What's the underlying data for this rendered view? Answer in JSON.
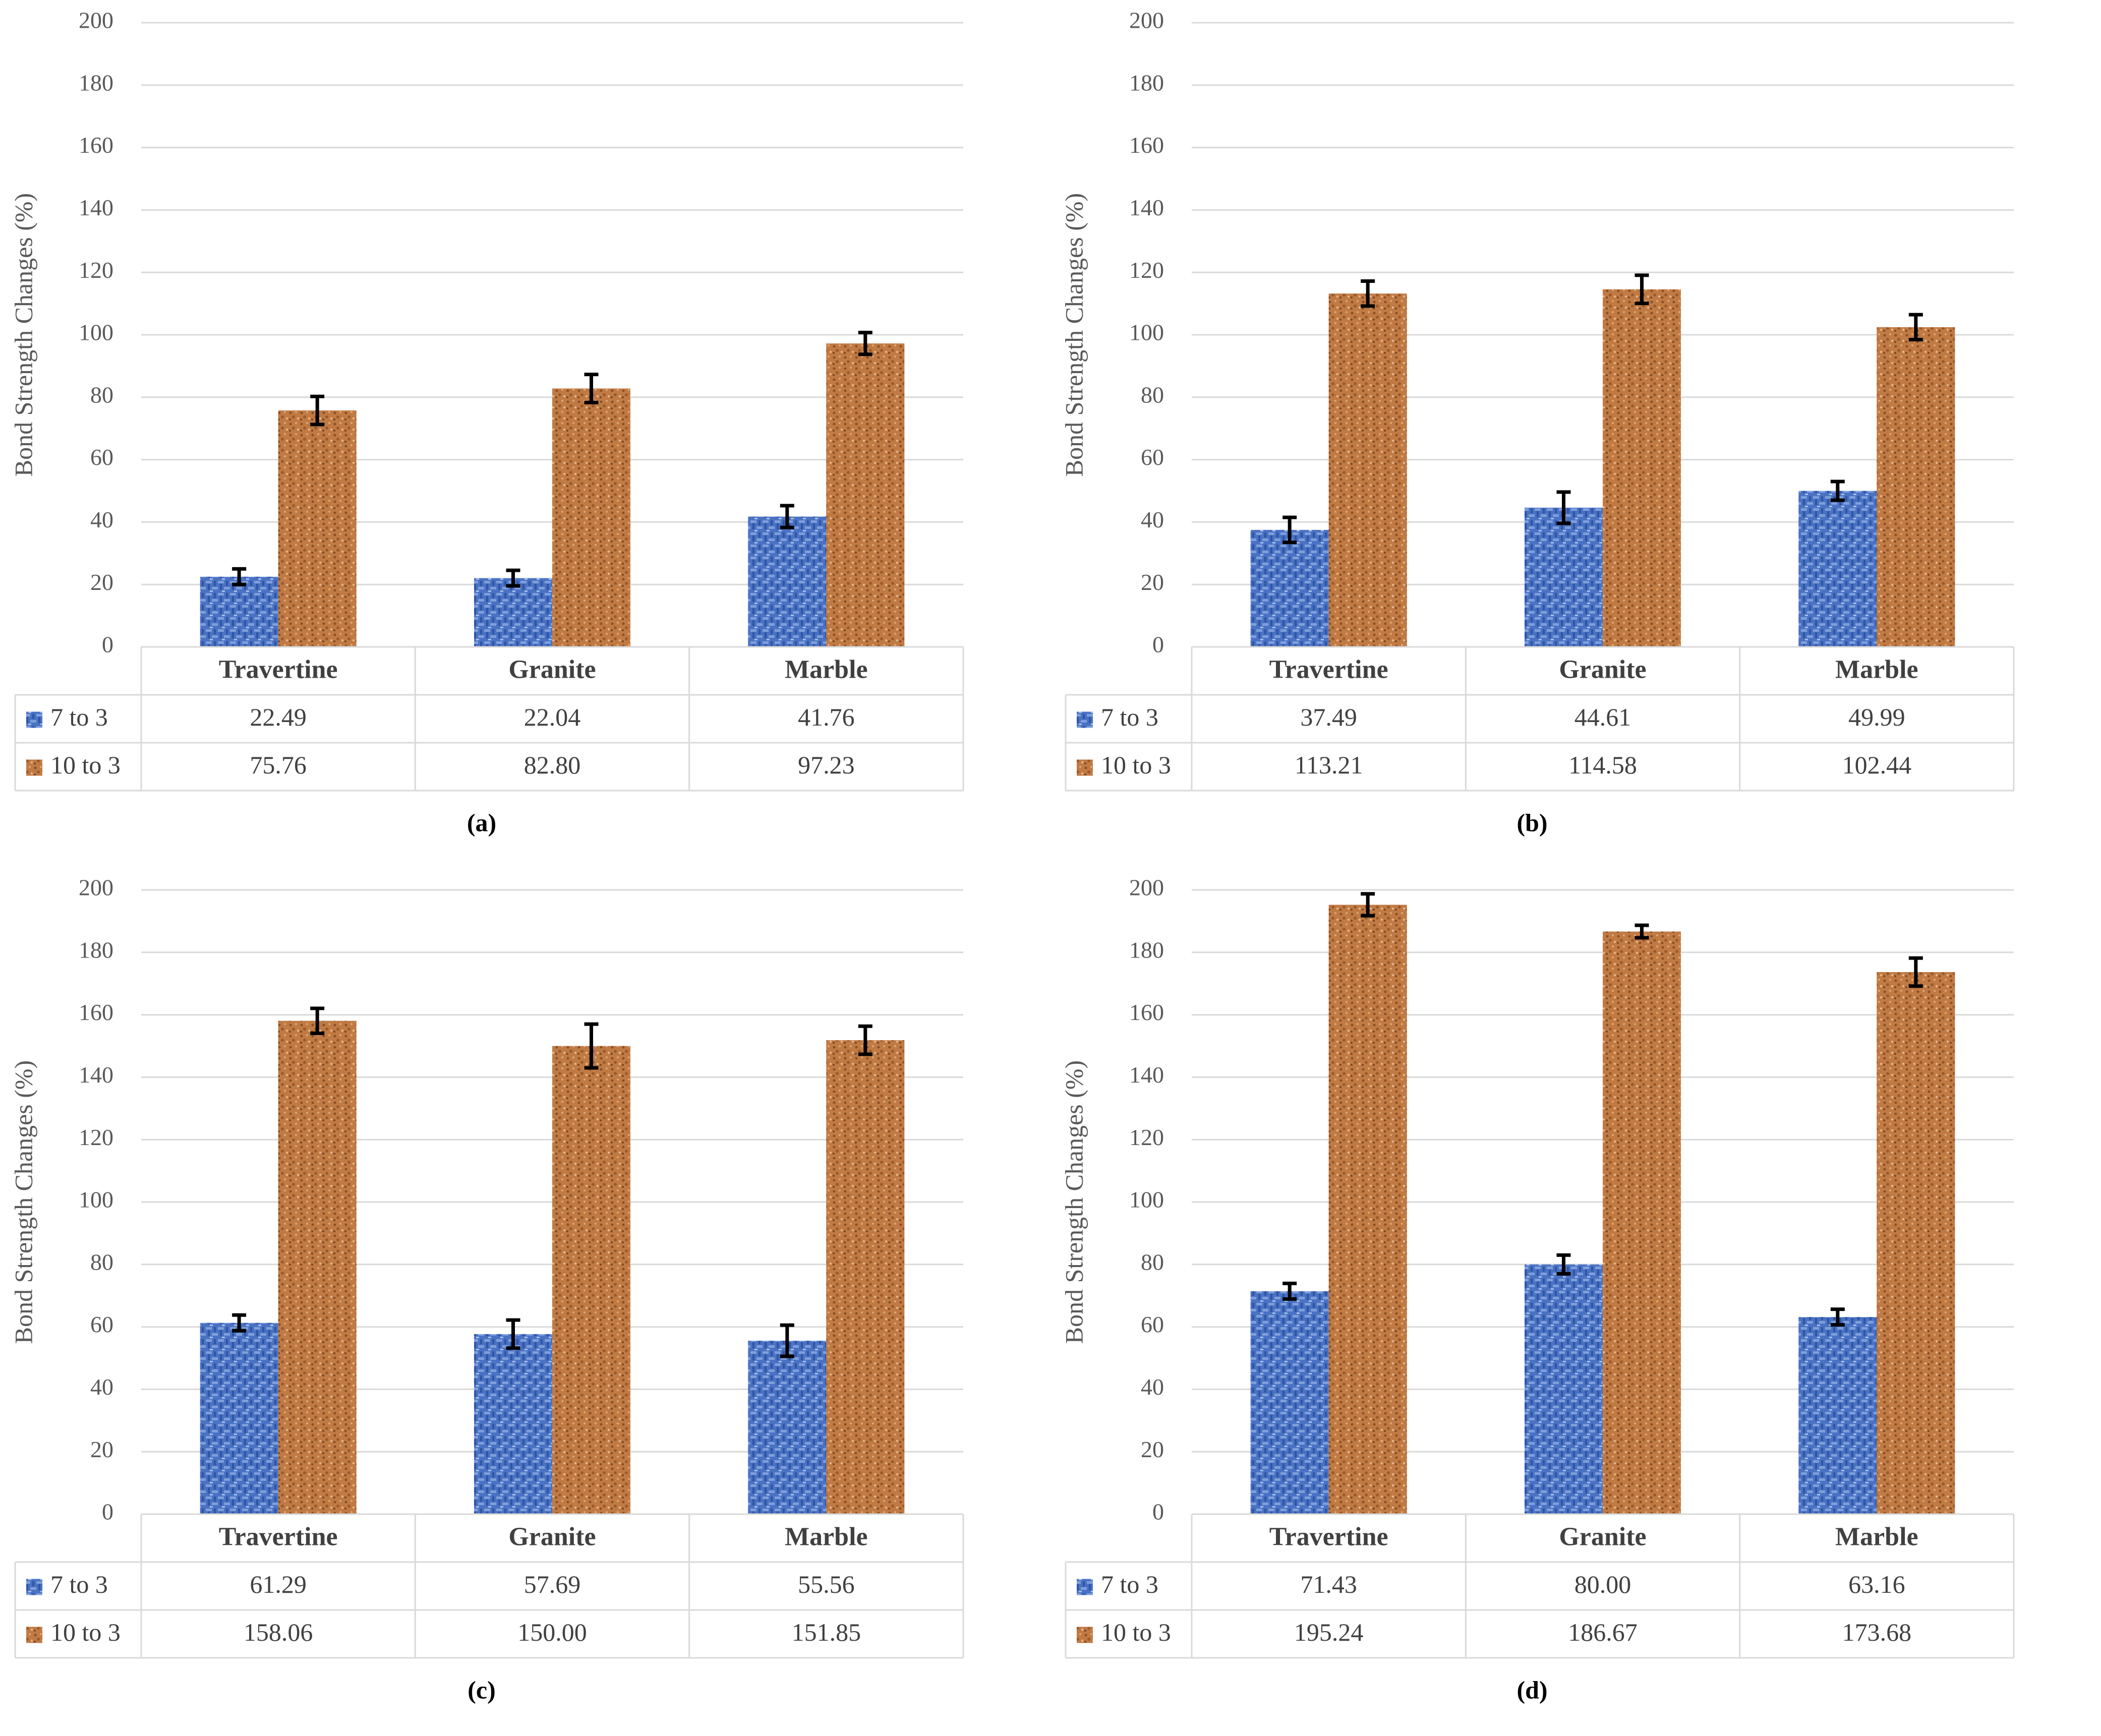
{
  "colors": {
    "series_7to3": "#4a72c4",
    "series_10to3": "#c07a44",
    "grid": "#d9d9d9",
    "text": "#404040"
  },
  "chart_data": [
    {
      "id": "a",
      "type": "bar",
      "subtitle": "(a)",
      "ylabel": "Bond Strength Changes (%)",
      "ylim": [
        0,
        200
      ],
      "yticks": [
        0,
        20,
        40,
        60,
        80,
        100,
        120,
        140,
        160,
        180,
        200
      ],
      "categories": [
        "Travertine",
        "Granite",
        "Marble"
      ],
      "series": [
        {
          "name": "7 to 3",
          "values": [
            22.49,
            22.04,
            41.76
          ],
          "labels": [
            "22.49",
            "22.04",
            "41.76"
          ],
          "errors": [
            2.5,
            2.5,
            3.5
          ]
        },
        {
          "name": "10 to 3",
          "values": [
            75.76,
            82.8,
            97.23
          ],
          "labels": [
            "75.76",
            "82.80",
            "97.23"
          ],
          "errors": [
            4.5,
            4.5,
            3.5
          ]
        }
      ]
    },
    {
      "id": "b",
      "type": "bar",
      "subtitle": "(b)",
      "ylabel": "Bond Strength Changes (%)",
      "ylim": [
        0,
        200
      ],
      "yticks": [
        0,
        20,
        40,
        60,
        80,
        100,
        120,
        140,
        160,
        180,
        200
      ],
      "categories": [
        "Travertine",
        "Granite",
        "Marble"
      ],
      "series": [
        {
          "name": "7 to 3",
          "values": [
            37.49,
            44.61,
            49.99
          ],
          "labels": [
            "37.49",
            "44.61",
            "49.99"
          ],
          "errors": [
            4.0,
            5.0,
            3.0
          ]
        },
        {
          "name": "10 to 3",
          "values": [
            113.21,
            114.58,
            102.44
          ],
          "labels": [
            "113.21",
            "114.58",
            "102.44"
          ],
          "errors": [
            4.0,
            4.5,
            4.0
          ]
        }
      ]
    },
    {
      "id": "c",
      "type": "bar",
      "subtitle": "(c)",
      "ylabel": "Bond Strength Changes (%)",
      "ylim": [
        0,
        200
      ],
      "yticks": [
        0,
        20,
        40,
        60,
        80,
        100,
        120,
        140,
        160,
        180,
        200
      ],
      "categories": [
        "Travertine",
        "Granite",
        "Marble"
      ],
      "series": [
        {
          "name": "7 to 3",
          "values": [
            61.29,
            57.69,
            55.56
          ],
          "labels": [
            "61.29",
            "57.69",
            "55.56"
          ],
          "errors": [
            2.5,
            4.5,
            5.0
          ]
        },
        {
          "name": "10 to 3",
          "values": [
            158.06,
            150.0,
            151.85
          ],
          "labels": [
            "158.06",
            "150.00",
            "151.85"
          ],
          "errors": [
            4.0,
            7.0,
            4.5
          ]
        }
      ]
    },
    {
      "id": "d",
      "type": "bar",
      "subtitle": "(d)",
      "ylabel": "Bond Strength Changes (%)",
      "ylim": [
        0,
        200
      ],
      "yticks": [
        0,
        20,
        40,
        60,
        80,
        100,
        120,
        140,
        160,
        180,
        200
      ],
      "categories": [
        "Travertine",
        "Granite",
        "Marble"
      ],
      "series": [
        {
          "name": "7 to 3",
          "values": [
            71.43,
            80.0,
            63.16
          ],
          "labels": [
            "71.43",
            "80.00",
            "63.16"
          ],
          "errors": [
            2.5,
            3.0,
            2.5
          ]
        },
        {
          "name": "10 to 3",
          "values": [
            195.24,
            186.67,
            173.68
          ],
          "labels": [
            "195.24",
            "186.67",
            "173.68"
          ],
          "errors": [
            3.5,
            2.0,
            4.5
          ]
        }
      ]
    }
  ]
}
